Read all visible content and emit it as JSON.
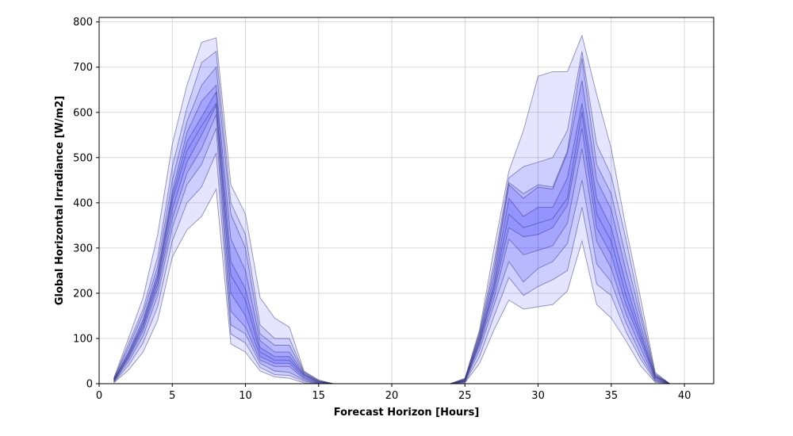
{
  "chart_data": {
    "type": "area",
    "xlabel": "Forecast Horizon [Hours]",
    "ylabel": "Global Horizontal Irradiance [W/m2]",
    "xlim": [
      0,
      42
    ],
    "ylim": [
      0,
      810
    ],
    "xticks": [
      0,
      5,
      10,
      15,
      20,
      25,
      30,
      35,
      40
    ],
    "yticks": [
      0,
      100,
      200,
      300,
      400,
      500,
      600,
      700,
      800
    ],
    "grid": true,
    "legend": "none",
    "colors": {
      "band_fill": "#0000ff",
      "band_edge": "#2b2b6e",
      "grid": "#d0d0d0",
      "axis": "#000000"
    },
    "x": [
      1,
      2,
      3,
      4,
      5,
      6,
      7,
      8,
      9,
      10,
      11,
      12,
      13,
      14,
      15,
      16,
      17,
      18,
      19,
      20,
      21,
      22,
      23,
      24,
      25,
      26,
      27,
      28,
      29,
      30,
      31,
      32,
      33,
      34,
      35,
      36,
      37,
      38,
      39,
      40
    ],
    "quantiles": [
      [
        2,
        30,
        70,
        140,
        280,
        340,
        370,
        430,
        88,
        70,
        28,
        15,
        12,
        2,
        0,
        0,
        0,
        0,
        0,
        0,
        0,
        0,
        0,
        0,
        2,
        45,
        120,
        185,
        165,
        170,
        175,
        205,
        315,
        175,
        145,
        95,
        40,
        3,
        0,
        0
      ],
      [
        3,
        40,
        90,
        170,
        315,
        400,
        435,
        510,
        110,
        90,
        36,
        20,
        18,
        5,
        0,
        0,
        0,
        0,
        0,
        0,
        0,
        0,
        0,
        0,
        3,
        60,
        150,
        235,
        195,
        215,
        230,
        250,
        390,
        220,
        195,
        115,
        55,
        5,
        0,
        0
      ],
      [
        4,
        48,
        105,
        195,
        345,
        440,
        485,
        565,
        130,
        110,
        45,
        28,
        25,
        8,
        0,
        0,
        0,
        0,
        0,
        0,
        0,
        0,
        0,
        0,
        4,
        75,
        175,
        270,
        225,
        255,
        270,
        310,
        450,
        265,
        225,
        135,
        65,
        7,
        0,
        0
      ],
      [
        5,
        54,
        117,
        210,
        365,
        465,
        520,
        595,
        160,
        125,
        52,
        38,
        38,
        11,
        1,
        0,
        0,
        0,
        0,
        0,
        0,
        0,
        0,
        0,
        5,
        85,
        190,
        320,
        285,
        295,
        305,
        355,
        520,
        315,
        255,
        155,
        80,
        9,
        0,
        0
      ],
      [
        6,
        58,
        124,
        220,
        385,
        490,
        550,
        615,
        200,
        150,
        60,
        45,
        45,
        14,
        2,
        0,
        0,
        0,
        0,
        0,
        0,
        0,
        0,
        0,
        6,
        90,
        205,
        345,
        325,
        330,
        345,
        395,
        565,
        345,
        285,
        175,
        95,
        12,
        0,
        0
      ],
      [
        7,
        62,
        130,
        230,
        405,
        515,
        570,
        620,
        240,
        185,
        70,
        52,
        52,
        18,
        3,
        0,
        0,
        0,
        0,
        0,
        0,
        0,
        0,
        0,
        7,
        95,
        215,
        375,
        345,
        355,
        365,
        410,
        600,
        375,
        315,
        195,
        105,
        14,
        0,
        0
      ],
      [
        8,
        66,
        136,
        238,
        415,
        535,
        590,
        645,
        270,
        210,
        80,
        60,
        60,
        20,
        4,
        0,
        0,
        0,
        0,
        0,
        0,
        0,
        0,
        0,
        8,
        100,
        225,
        410,
        370,
        390,
        390,
        455,
        620,
        410,
        345,
        220,
        115,
        16,
        0,
        0
      ],
      [
        9,
        70,
        142,
        246,
        425,
        555,
        625,
        660,
        320,
        250,
        95,
        70,
        70,
        22,
        5,
        0,
        0,
        0,
        0,
        0,
        0,
        0,
        0,
        0,
        9,
        105,
        240,
        440,
        410,
        435,
        430,
        510,
        670,
        450,
        385,
        250,
        130,
        18,
        0,
        0
      ],
      [
        10,
        80,
        155,
        260,
        450,
        580,
        660,
        700,
        375,
        300,
        110,
        85,
        85,
        24,
        6,
        0,
        0,
        0,
        0,
        0,
        0,
        0,
        0,
        0,
        10,
        110,
        255,
        445,
        420,
        440,
        435,
        515,
        720,
        485,
        420,
        280,
        150,
        20,
        0,
        0
      ],
      [
        11,
        88,
        165,
        280,
        480,
        610,
        710,
        735,
        400,
        330,
        130,
        100,
        100,
        26,
        7,
        0,
        0,
        0,
        0,
        0,
        0,
        0,
        0,
        0,
        11,
        115,
        270,
        455,
        480,
        490,
        500,
        560,
        735,
        530,
        460,
        320,
        165,
        22,
        0,
        0
      ],
      [
        12,
        100,
        190,
        330,
        530,
        660,
        755,
        765,
        440,
        375,
        190,
        145,
        125,
        28,
        8,
        0,
        0,
        0,
        0,
        0,
        0,
        0,
        0,
        0,
        12,
        120,
        300,
        470,
        560,
        680,
        690,
        690,
        770,
        640,
        520,
        345,
        190,
        25,
        0,
        0
      ]
    ]
  }
}
